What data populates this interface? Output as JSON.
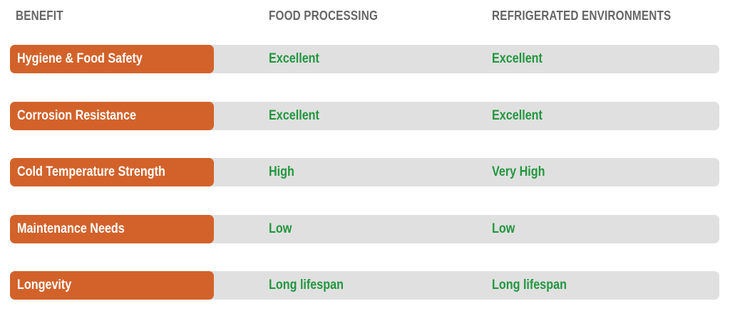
{
  "table": {
    "header": [
      "BENEFIT",
      "FOOD PROCESSING",
      "REFRIGERATED ENVIRONMENTS"
    ],
    "rows": [
      [
        "Hygiene & Food Safety",
        "Excellent",
        "Excellent"
      ],
      [
        "Corrosion Resistance",
        "Excellent",
        "Excellent"
      ],
      [
        "Cold Temperature Strength",
        "High",
        "Very High"
      ],
      [
        "Maintenance Needs",
        "Low",
        "Low"
      ],
      [
        "Longevity",
        "Long lifespan",
        "Long lifespan"
      ]
    ]
  }
}
